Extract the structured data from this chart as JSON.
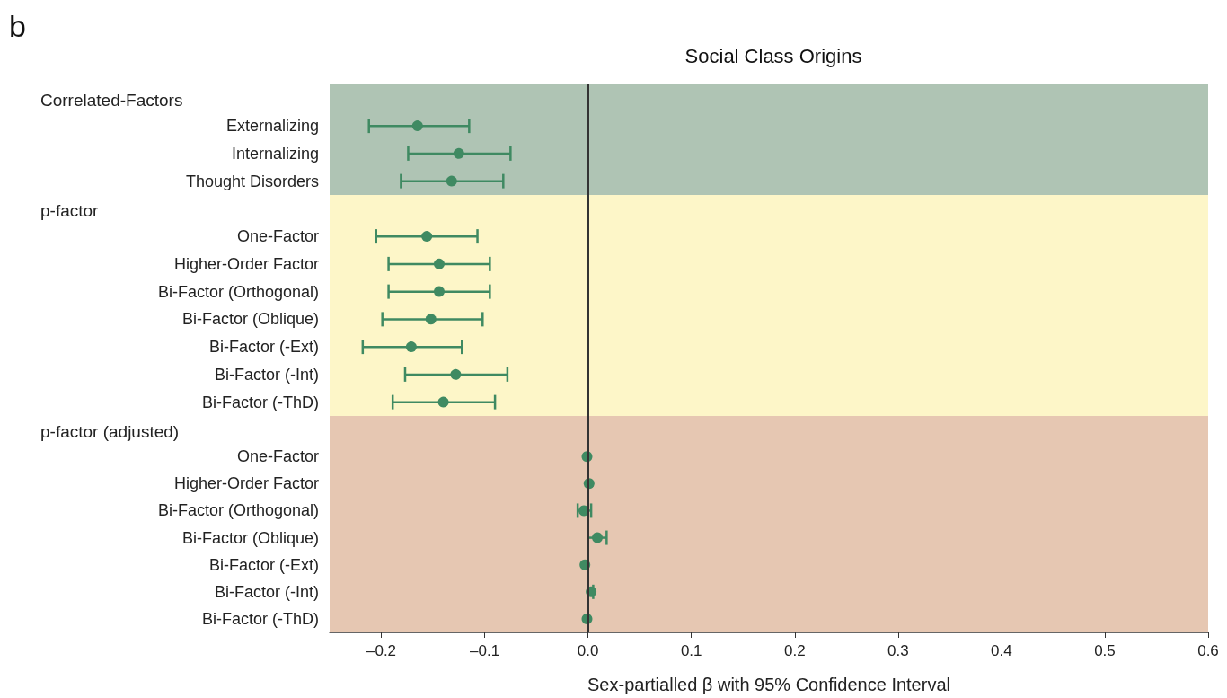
{
  "chart_data": [
    {
      "type": "scatter",
      "title": "Social Class Origins",
      "subtitle": "Correlated-Factors",
      "annotations": [
        "b"
      ],
      "categories": [
        "Externalizing",
        "Internalizing",
        "Thought Disorders"
      ],
      "orientation": "horizontal",
      "series": [
        {
          "color": "#3f8a62",
          "values": [
            -0.165,
            -0.125,
            -0.132
          ],
          "errors": [
            [
              -0.212,
              -0.115
            ],
            [
              -0.174,
              -0.075
            ],
            [
              -0.181,
              -0.082
            ]
          ]
        }
      ],
      "marker": "circle",
      "xlim": [
        -0.25,
        0.6
      ],
      "xticks": [
        {
          "value": -0.2,
          "label": null
        },
        {
          "value": -0.1,
          "label": null
        },
        {
          "value": 0,
          "label": null
        },
        {
          "value": 0.1,
          "label": null
        },
        {
          "value": 0.2,
          "label": null
        },
        {
          "value": 0.3,
          "label": null
        },
        {
          "value": 0.4,
          "label": null
        },
        {
          "value": 0.5,
          "label": null
        },
        {
          "value": 0.6,
          "label": null
        }
      ],
      "tick_labels": "y",
      "ref_lines": [
        {
          "axis": "x",
          "value": 0,
          "color": "#333333"
        }
      ],
      "bands": [
        {
          "axis": "y",
          "from": "Externalizing",
          "to": "Thought Disorders",
          "color": "#afc4b4"
        }
      ],
      "grid": false
    },
    {
      "type": "scatter",
      "subtitle": "p-factor",
      "categories": [
        "One-Factor",
        "Higher-Order Factor",
        "Bi-Factor (Orthogonal)",
        "Bi-Factor (Oblique)",
        "Bi-Factor (-Ext)",
        "Bi-Factor (-Int)",
        "Bi-Factor (-ThD)"
      ],
      "orientation": "horizontal",
      "series": [
        {
          "color": "#3f8a62",
          "values": [
            -0.156,
            -0.144,
            -0.144,
            -0.152,
            -0.171,
            -0.128,
            -0.14
          ],
          "errors": [
            [
              -0.205,
              -0.107
            ],
            [
              -0.193,
              -0.095
            ],
            [
              -0.193,
              -0.095
            ],
            [
              -0.199,
              -0.102
            ],
            [
              -0.218,
              -0.122
            ],
            [
              -0.177,
              -0.078
            ],
            [
              -0.189,
              -0.09
            ]
          ]
        }
      ],
      "marker": "circle",
      "xlim": [
        -0.25,
        0.6
      ],
      "xticks": [
        {
          "value": -0.2,
          "label": null
        },
        {
          "value": -0.1,
          "label": null
        },
        {
          "value": 0,
          "label": null
        },
        {
          "value": 0.1,
          "label": null
        },
        {
          "value": 0.2,
          "label": null
        },
        {
          "value": 0.3,
          "label": null
        },
        {
          "value": 0.4,
          "label": null
        },
        {
          "value": 0.5,
          "label": null
        },
        {
          "value": 0.6,
          "label": null
        }
      ],
      "tick_labels": "y",
      "ref_lines": [
        {
          "axis": "x",
          "value": 0,
          "color": "#333333"
        }
      ],
      "bands": [
        {
          "axis": "y",
          "from": "One-Factor",
          "to": "Bi-Factor (-ThD)",
          "color": "#fdf6c8"
        }
      ],
      "grid": false
    },
    {
      "type": "scatter",
      "subtitle": "p-factor (adjusted)",
      "xlabel": "Sex-partialled β with 95% Confidence Interval",
      "categories": [
        "One-Factor",
        "Higher-Order Factor",
        "Bi-Factor (Orthogonal)",
        "Bi-Factor (Oblique)",
        "Bi-Factor (-Ext)",
        "Bi-Factor (-Int)",
        "Bi-Factor (-ThD)"
      ],
      "orientation": "horizontal",
      "series": [
        {
          "color": "#3f8a62",
          "values": [
            -0.001,
            0.001,
            -0.004,
            0.009,
            -0.003,
            0.003,
            -0.001
          ],
          "errors": [
            null,
            null,
            [
              -0.01,
              0.003
            ],
            [
              0.0,
              0.018
            ],
            null,
            [
              0.0,
              0.005
            ],
            null
          ]
        }
      ],
      "marker": "circle",
      "xlim": [
        -0.25,
        0.6
      ],
      "xticks": [
        {
          "value": -0.2,
          "label": "–0.2"
        },
        {
          "value": -0.1,
          "label": "–0.1"
        },
        {
          "value": 0,
          "label": "0.0"
        },
        0.1,
        0.2,
        0.3,
        0.4,
        0.5,
        0.6
      ],
      "ref_lines": [
        {
          "axis": "x",
          "value": 0,
          "color": "#333333"
        }
      ],
      "bands": [
        {
          "axis": "y",
          "from": "One-Factor",
          "to": "Bi-Factor (-ThD)",
          "color": "#e6c7b2"
        }
      ],
      "grid": false
    }
  ]
}
